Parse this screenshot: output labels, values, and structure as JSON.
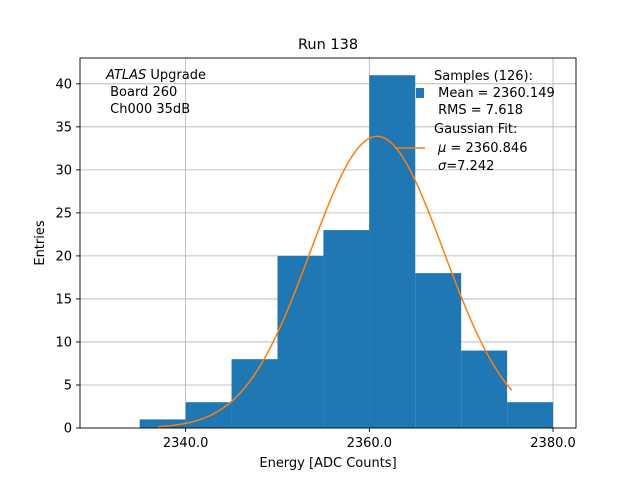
{
  "chart_data": {
    "type": "bar",
    "title": "Run 138",
    "xlabel": "Energy [ADC Counts]",
    "ylabel": "Entries",
    "xlim": [
      2328.5,
      2382.5
    ],
    "ylim": [
      0,
      43
    ],
    "grid": true,
    "x_ticks": [
      2340.0,
      2360.0,
      2380.0
    ],
    "x_tick_labels": [
      "2340.0",
      "2360.0",
      "2380.0"
    ],
    "y_ticks": [
      0,
      5,
      10,
      15,
      20,
      25,
      30,
      35,
      40
    ],
    "y_tick_labels": [
      "0",
      "5",
      "10",
      "15",
      "20",
      "25",
      "30",
      "35",
      "40"
    ],
    "bin_edges": [
      2335,
      2340,
      2345,
      2350,
      2355,
      2360,
      2365,
      2370,
      2375,
      2380
    ],
    "counts": [
      1,
      3,
      8,
      20,
      23,
      41,
      18,
      9,
      3
    ],
    "bar_color": "#1f77b4",
    "fit": {
      "name": "Gaussian Fit",
      "mu": 2360.846,
      "sigma": 7.242,
      "amplitude": 33.9,
      "x_range": [
        2337.0,
        2375.5
      ],
      "color": "#ff7f0e"
    },
    "annotation": {
      "line1_italic": "ATLAS",
      "line1_rest": " Upgrade",
      "line2": " Board 260",
      "line3": " Ch000 35dB"
    },
    "legend": {
      "position": "top-right",
      "samples_title": "Samples (126):",
      "samples_mean": " Mean = 2360.149",
      "samples_rms": " RMS = 7.618",
      "fit_title": "Gaussian Fit:",
      "fit_mu": " = 2360.846",
      "fit_sigma": "=7.242",
      "mu_symbol": "μ",
      "sigma_symbol": "σ"
    }
  }
}
